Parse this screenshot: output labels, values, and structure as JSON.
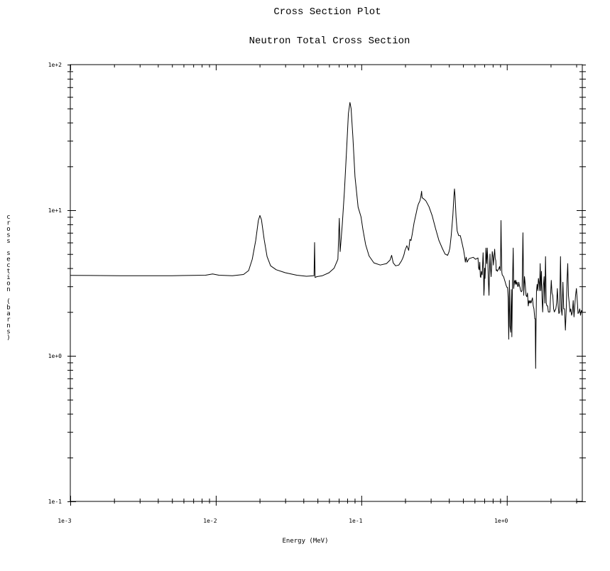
{
  "chart_data": {
    "type": "line",
    "title": "Cross Section Plot",
    "subtitle": "Neutron Total Cross Section",
    "xlabel": "Energy (MeV)",
    "ylabel": "cross section (barns)",
    "x_scale": "log",
    "y_scale": "log",
    "xlim": [
      0.001,
      3.3
    ],
    "ylim": [
      0.1,
      100
    ],
    "grid": false,
    "x_ticks": [
      {
        "value": 0.001,
        "label": "1e-3"
      },
      {
        "value": 0.01,
        "label": "1e-2"
      },
      {
        "value": 0.1,
        "label": "1e-1"
      },
      {
        "value": 1,
        "label": "1e+0"
      }
    ],
    "y_ticks": [
      {
        "value": 0.1,
        "label": "1e-1"
      },
      {
        "value": 1,
        "label": "1e+0"
      },
      {
        "value": 10,
        "label": "1e+1"
      },
      {
        "value": 100,
        "label": "1e+2"
      }
    ],
    "series": [
      {
        "color": "#000000",
        "points": [
          [
            0.001,
            3.57
          ],
          [
            0.0022,
            3.55
          ],
          [
            0.005,
            3.55
          ],
          [
            0.0085,
            3.58
          ],
          [
            0.0095,
            3.65
          ],
          [
            0.0105,
            3.58
          ],
          [
            0.013,
            3.55
          ],
          [
            0.0155,
            3.62
          ],
          [
            0.0168,
            3.85
          ],
          [
            0.0178,
            4.6
          ],
          [
            0.0188,
            6.2
          ],
          [
            0.0196,
            8.5
          ],
          [
            0.0201,
            9.2
          ],
          [
            0.0206,
            8.6
          ],
          [
            0.0215,
            6.3
          ],
          [
            0.0225,
            4.8
          ],
          [
            0.0238,
            4.15
          ],
          [
            0.026,
            3.9
          ],
          [
            0.03,
            3.72
          ],
          [
            0.036,
            3.58
          ],
          [
            0.042,
            3.52
          ],
          [
            0.0473,
            3.55
          ],
          [
            0.0477,
            6.0
          ],
          [
            0.0481,
            3.45
          ],
          [
            0.0495,
            3.5
          ],
          [
            0.054,
            3.55
          ],
          [
            0.06,
            3.72
          ],
          [
            0.065,
            4.0
          ],
          [
            0.069,
            4.6
          ],
          [
            0.0706,
            8.8
          ],
          [
            0.0715,
            5.2
          ],
          [
            0.074,
            8.0
          ],
          [
            0.0765,
            13.5
          ],
          [
            0.0795,
            28
          ],
          [
            0.0815,
            46
          ],
          [
            0.0835,
            55
          ],
          [
            0.085,
            50
          ],
          [
            0.0875,
            32
          ],
          [
            0.0905,
            17
          ],
          [
            0.095,
            10.5
          ],
          [
            0.0995,
            9.0
          ],
          [
            0.1025,
            7.4
          ],
          [
            0.107,
            5.8
          ],
          [
            0.113,
            4.85
          ],
          [
            0.122,
            4.35
          ],
          [
            0.135,
            4.2
          ],
          [
            0.149,
            4.3
          ],
          [
            0.1575,
            4.55
          ],
          [
            0.1615,
            4.9
          ],
          [
            0.1655,
            4.35
          ],
          [
            0.172,
            4.15
          ],
          [
            0.181,
            4.2
          ],
          [
            0.189,
            4.5
          ],
          [
            0.193,
            4.7
          ],
          [
            0.1965,
            4.95
          ],
          [
            0.1995,
            5.3
          ],
          [
            0.2055,
            5.7
          ],
          [
            0.2115,
            5.3
          ],
          [
            0.2155,
            6.3
          ],
          [
            0.2195,
            6.2
          ],
          [
            0.2235,
            6.8
          ],
          [
            0.2275,
            7.6
          ],
          [
            0.2305,
            8.2
          ],
          [
            0.2345,
            8.9
          ],
          [
            0.2385,
            9.6
          ],
          [
            0.2425,
            10.4
          ],
          [
            0.2465,
            11.0
          ],
          [
            0.2525,
            11.6
          ],
          [
            0.256,
            12.3
          ],
          [
            0.2595,
            13.5
          ],
          [
            0.2615,
            12.2
          ],
          [
            0.2675,
            12.0
          ],
          [
            0.2775,
            11.6
          ],
          [
            0.2915,
            10.6
          ],
          [
            0.3065,
            9.2
          ],
          [
            0.3235,
            7.5
          ],
          [
            0.3415,
            6.2
          ],
          [
            0.3605,
            5.45
          ],
          [
            0.376,
            5.0
          ],
          [
            0.3915,
            4.9
          ],
          [
            0.3995,
            5.15
          ],
          [
            0.406,
            5.5
          ],
          [
            0.4145,
            6.7
          ],
          [
            0.4255,
            9.2
          ],
          [
            0.4325,
            12.5
          ],
          [
            0.4365,
            14.0
          ],
          [
            0.4405,
            12.5
          ],
          [
            0.4475,
            9.0
          ],
          [
            0.4555,
            7.2
          ],
          [
            0.4665,
            6.7
          ],
          [
            0.4785,
            6.7
          ],
          [
            0.4915,
            6.0
          ],
          [
            0.5045,
            5.3
          ],
          [
            0.5125,
            4.8
          ],
          [
            0.5185,
            4.4
          ],
          [
            0.5255,
            4.75
          ],
          [
            0.5325,
            4.4
          ],
          [
            0.5495,
            4.65
          ],
          [
            0.5685,
            4.7
          ],
          [
            0.5875,
            4.75
          ],
          [
            0.6095,
            4.6
          ],
          [
            0.6335,
            4.7
          ],
          [
            0.6395,
            4.0
          ],
          [
            0.6455,
            3.9
          ],
          [
            0.6515,
            4.4
          ],
          [
            0.6575,
            3.5
          ],
          [
            0.6625,
            3.45
          ],
          [
            0.6685,
            3.8
          ],
          [
            0.6765,
            3.6
          ],
          [
            0.6815,
            4.2
          ],
          [
            0.6865,
            5.1
          ],
          [
            0.6915,
            4.0
          ],
          [
            0.6955,
            2.6
          ],
          [
            0.6995,
            2.9
          ],
          [
            0.7035,
            4.0
          ],
          [
            0.7075,
            3.4
          ],
          [
            0.7135,
            4.1
          ],
          [
            0.7185,
            5.5
          ],
          [
            0.7235,
            4.8
          ],
          [
            0.7275,
            4.3
          ],
          [
            0.7335,
            5.5
          ],
          [
            0.7405,
            4.5
          ],
          [
            0.7455,
            3.4
          ],
          [
            0.7535,
            2.6
          ],
          [
            0.7595,
            3.8
          ],
          [
            0.7655,
            5.0
          ],
          [
            0.7725,
            4.0
          ],
          [
            0.7795,
            3.5
          ],
          [
            0.7865,
            4.2
          ],
          [
            0.7935,
            5.2
          ],
          [
            0.8015,
            4.8
          ],
          [
            0.8085,
            4.2
          ],
          [
            0.8175,
            4.9
          ],
          [
            0.8245,
            5.4
          ],
          [
            0.8315,
            4.7
          ],
          [
            0.8395,
            4.5
          ],
          [
            0.8455,
            3.85
          ],
          [
            0.8515,
            3.9
          ],
          [
            0.8605,
            3.8
          ],
          [
            0.8695,
            3.9
          ],
          [
            0.8795,
            3.95
          ],
          [
            0.8905,
            4.1
          ],
          [
            0.9015,
            3.85
          ],
          [
            0.9065,
            4.9
          ],
          [
            0.9115,
            8.5
          ],
          [
            0.9165,
            5.6
          ],
          [
            0.9235,
            3.75
          ],
          [
            0.9295,
            3.6
          ],
          [
            0.9385,
            3.55
          ],
          [
            0.9495,
            3.5
          ],
          [
            0.9625,
            3.35
          ],
          [
            0.9755,
            3.2
          ],
          [
            0.9885,
            3.05
          ],
          [
            1.0015,
            2.95
          ],
          [
            1.0105,
            2.95
          ],
          [
            1.0205,
            2.5
          ],
          [
            1.0305,
            1.3
          ],
          [
            1.0405,
            3.3
          ],
          [
            1.0505,
            1.6
          ],
          [
            1.0625,
            1.45
          ],
          [
            1.0725,
            2.85
          ],
          [
            1.0825,
            1.35
          ],
          [
            1.0935,
            3.2
          ],
          [
            1.1055,
            5.5
          ],
          [
            1.1145,
            2.9
          ],
          [
            1.1245,
            3.2
          ],
          [
            1.1345,
            3.3
          ],
          [
            1.1445,
            3.1
          ],
          [
            1.1545,
            3.3
          ],
          [
            1.1655,
            3.1
          ],
          [
            1.1765,
            3.2
          ],
          [
            1.1865,
            3.0
          ],
          [
            1.1975,
            3.0
          ],
          [
            1.2075,
            3.2
          ],
          [
            1.2185,
            3.05
          ],
          [
            1.2305,
            2.95
          ],
          [
            1.2445,
            2.8
          ],
          [
            1.2585,
            2.75
          ],
          [
            1.2725,
            2.8
          ],
          [
            1.2905,
            7.0
          ],
          [
            1.3055,
            2.6
          ],
          [
            1.3215,
            3.5
          ],
          [
            1.3375,
            3.1
          ],
          [
            1.3545,
            2.6
          ],
          [
            1.3715,
            2.55
          ],
          [
            1.3865,
            2.7
          ],
          [
            1.4025,
            2.2
          ],
          [
            1.4185,
            2.4
          ],
          [
            1.4345,
            2.3
          ],
          [
            1.4505,
            2.4
          ],
          [
            1.4665,
            2.3
          ],
          [
            1.4825,
            2.4
          ],
          [
            1.4995,
            2.5
          ],
          [
            1.5175,
            2.2
          ],
          [
            1.5345,
            2.1
          ],
          [
            1.5555,
            1.8
          ],
          [
            1.5675,
            1.8
          ],
          [
            1.5765,
            0.82
          ],
          [
            1.5865,
            1.55
          ],
          [
            1.5985,
            2.8
          ],
          [
            1.6145,
            3.1
          ],
          [
            1.6315,
            2.8
          ],
          [
            1.6475,
            3.4
          ],
          [
            1.6625,
            3.2
          ],
          [
            1.6785,
            2.8
          ],
          [
            1.6955,
            4.3
          ],
          [
            1.7125,
            2.8
          ],
          [
            1.7295,
            3.8
          ],
          [
            1.7455,
            2.5
          ],
          [
            1.7625,
            2.0
          ],
          [
            1.7825,
            3.0
          ],
          [
            1.8025,
            3.5
          ],
          [
            1.8225,
            2.3
          ],
          [
            1.8435,
            4.8
          ],
          [
            1.8655,
            2.3
          ],
          [
            1.8855,
            2.2
          ],
          [
            1.9065,
            2.2
          ],
          [
            1.9295,
            2.0
          ],
          [
            1.9515,
            2.0
          ],
          [
            1.9745,
            2.0
          ],
          [
            1.9955,
            2.5
          ],
          [
            2.0195,
            3.3
          ],
          [
            2.0435,
            2.7
          ],
          [
            2.0685,
            2.6
          ],
          [
            2.0955,
            2.1
          ],
          [
            2.1195,
            2.0
          ],
          [
            2.1445,
            2.05
          ],
          [
            2.1705,
            2.1
          ],
          [
            2.1965,
            2.3
          ],
          [
            2.2235,
            2.9
          ],
          [
            2.2515,
            2.2
          ],
          [
            2.2785,
            1.95
          ],
          [
            2.3065,
            2.0
          ],
          [
            2.3365,
            4.8
          ],
          [
            2.3665,
            2.1
          ],
          [
            2.3965,
            1.9
          ],
          [
            2.4275,
            3.2
          ],
          [
            2.4585,
            2.1
          ],
          [
            2.4915,
            2.1
          ],
          [
            2.5255,
            1.5
          ],
          [
            2.5595,
            2.1
          ],
          [
            2.5915,
            3.3
          ],
          [
            2.6205,
            4.3
          ],
          [
            2.6505,
            2.6
          ],
          [
            2.6825,
            2.3
          ],
          [
            2.7165,
            2.0
          ],
          [
            2.7505,
            2.1
          ],
          [
            2.7855,
            1.9
          ],
          [
            2.8215,
            2.0
          ],
          [
            2.8565,
            2.4
          ],
          [
            2.8925,
            1.85
          ],
          [
            2.9295,
            2.2
          ],
          [
            2.9665,
            2.6
          ],
          [
            3.0045,
            2.9
          ],
          [
            3.0455,
            2.4
          ],
          [
            3.0855,
            1.95
          ],
          [
            3.1255,
            2.0
          ],
          [
            3.1675,
            2.1
          ],
          [
            3.2095,
            1.9
          ],
          [
            3.2515,
            2.05
          ],
          [
            3.3,
            2.0
          ]
        ]
      }
    ]
  }
}
